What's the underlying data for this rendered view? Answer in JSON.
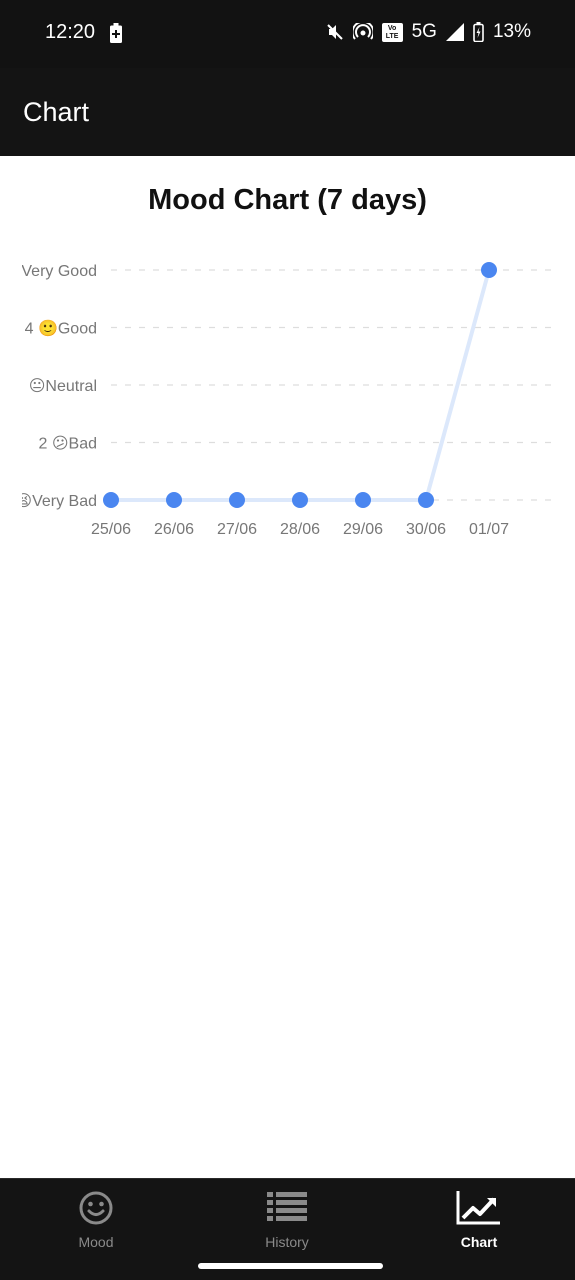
{
  "status_bar": {
    "time": "12:20",
    "network": "5G",
    "battery_percent": "13%",
    "volte_label": "Vo LTE",
    "icons": [
      "battery-saver-icon",
      "mute-icon",
      "hotspot-icon",
      "volte-icon",
      "signal-icon",
      "battery-charging-icon"
    ]
  },
  "app_bar": {
    "title": "Chart"
  },
  "chart_data": {
    "type": "line",
    "title": "Mood Chart (7 days)",
    "categories": [
      "25/06",
      "26/06",
      "27/06",
      "28/06",
      "29/06",
      "30/06",
      "01/07"
    ],
    "series": [
      {
        "name": "Mood",
        "values": [
          1,
          1,
          1,
          1,
          1,
          1,
          5
        ]
      }
    ],
    "y_ticks": [
      {
        "value": 5,
        "label": "Very Good"
      },
      {
        "value": 4,
        "label": "4 🙂Good"
      },
      {
        "value": 3,
        "label": "😐Neutral"
      },
      {
        "value": 2,
        "label": "2 😕Bad"
      },
      {
        "value": 1,
        "label": "😫Very Bad"
      }
    ],
    "ylim": [
      1,
      5
    ],
    "grid": true,
    "colors": {
      "point": "#4a86f0",
      "line": "#dce8fb",
      "grid": "#dddddd",
      "tick": "#777777"
    }
  },
  "bottom_nav": {
    "items": [
      {
        "label": "Mood",
        "icon": "smiley-icon",
        "active": false
      },
      {
        "label": "History",
        "icon": "list-icon",
        "active": false
      },
      {
        "label": "Chart",
        "icon": "trending-up-icon",
        "active": true
      }
    ]
  }
}
